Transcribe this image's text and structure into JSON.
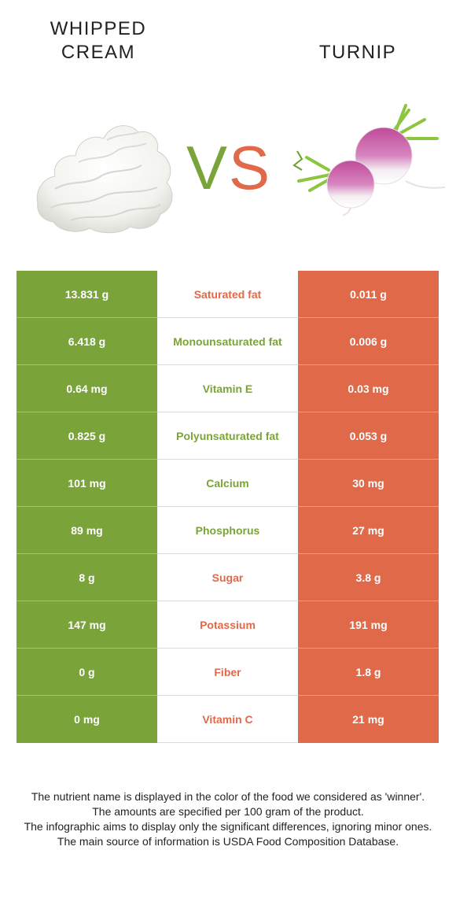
{
  "titles": {
    "left": "WHIPPED\nCREAM",
    "right": "TURNIP"
  },
  "vs": {
    "v": "V",
    "s": "S"
  },
  "colors": {
    "left_winner": "#7aa33a",
    "right_winner": "#e0694a"
  },
  "images": {
    "left": "whipped-cream-image",
    "right": "turnip-image"
  },
  "rows": [
    {
      "left": "13.831 g",
      "nutrient": "Saturated fat",
      "right": "0.011 g",
      "winner": "right"
    },
    {
      "left": "6.418 g",
      "nutrient": "Monounsaturated fat",
      "right": "0.006 g",
      "winner": "left"
    },
    {
      "left": "0.64 mg",
      "nutrient": "Vitamin E",
      "right": "0.03 mg",
      "winner": "left"
    },
    {
      "left": "0.825 g",
      "nutrient": "Polyunsaturated fat",
      "right": "0.053 g",
      "winner": "left"
    },
    {
      "left": "101 mg",
      "nutrient": "Calcium",
      "right": "30 mg",
      "winner": "left"
    },
    {
      "left": "89 mg",
      "nutrient": "Phosphorus",
      "right": "27 mg",
      "winner": "left"
    },
    {
      "left": "8 g",
      "nutrient": "Sugar",
      "right": "3.8 g",
      "winner": "right"
    },
    {
      "left": "147 mg",
      "nutrient": "Potassium",
      "right": "191 mg",
      "winner": "right"
    },
    {
      "left": "0 g",
      "nutrient": "Fiber",
      "right": "1.8 g",
      "winner": "right"
    },
    {
      "left": "0 mg",
      "nutrient": "Vitamin C",
      "right": "21 mg",
      "winner": "right"
    }
  ],
  "footnote": [
    "The nutrient name is displayed in the color of the food we considered as 'winner'.",
    "The amounts are specified per 100 gram of the product.",
    "The infographic aims to display only the significant differences, ignoring minor ones.",
    "The main source of information is USDA Food Composition Database."
  ]
}
